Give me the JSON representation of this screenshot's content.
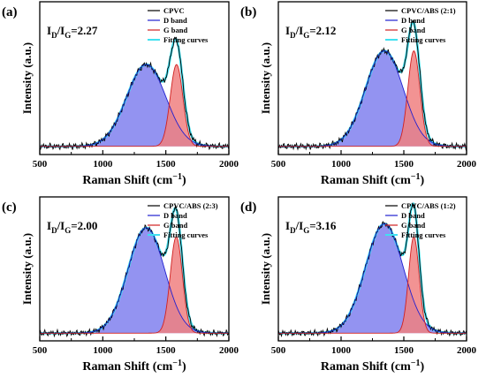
{
  "chart_data": [
    {
      "panel": "(a)",
      "type": "line",
      "annotation": {
        "base": "I",
        "sub1": "D",
        "sep": "/I",
        "sub2": "G",
        "value": "=2.27"
      },
      "xlabel": "Raman Shift (cm⁻¹)",
      "ylabel": "Intensity (a.u.)",
      "xlim": [
        500,
        2000
      ],
      "x_ticks": [
        "500",
        "1000",
        "1500",
        "2000"
      ],
      "legend_position": "top-right",
      "legend": [
        "CPVC",
        "D band",
        "G band",
        "Fitting curves"
      ],
      "baseline": 0.06,
      "d_band": {
        "center": 1345,
        "width": 155,
        "height": 0.6
      },
      "g_band": {
        "center": 1585,
        "width": 50,
        "height": 0.6
      },
      "ylim": [
        0,
        1.12
      ],
      "colors": {
        "measured": "#000000",
        "d_band": "#2020d0",
        "g_band": "#d02020",
        "fit": "#40e0f0",
        "d_fill": "#8080ee",
        "g_fill": "#f08080"
      }
    },
    {
      "panel": "(b)",
      "type": "line",
      "annotation": {
        "base": "I",
        "sub1": "D",
        "sep": "/I",
        "sub2": "G",
        "value": "=2.12"
      },
      "xlabel": "Raman Shift (cm⁻¹)",
      "ylabel": "Intensity (a.u.)",
      "xlim": [
        500,
        2000
      ],
      "x_ticks": [
        "500",
        "1000",
        "1500",
        "2000"
      ],
      "legend_position": "top-right",
      "legend": [
        "CPVC/ABS (2:1)",
        "D band",
        "G band",
        "Fitting curves"
      ],
      "baseline": 0.06,
      "d_band": {
        "center": 1345,
        "width": 150,
        "height": 0.7
      },
      "g_band": {
        "center": 1580,
        "width": 48,
        "height": 0.7
      },
      "ylim": [
        0,
        1.12
      ],
      "colors": {
        "measured": "#000000",
        "d_band": "#2020d0",
        "g_band": "#d02020",
        "fit": "#40e0f0",
        "d_fill": "#8080ee",
        "g_fill": "#f08080"
      }
    },
    {
      "panel": "(c)",
      "type": "line",
      "annotation": {
        "base": "I",
        "sub1": "D",
        "sep": "/I",
        "sub2": "G",
        "value": "=2.00"
      },
      "xlabel": "Raman Shift (cm⁻¹)",
      "ylabel": "Intensity (a.u.)",
      "xlim": [
        500,
        2000
      ],
      "x_ticks": [
        "500",
        "1000",
        "1500",
        "2000"
      ],
      "legend_position": "top-right",
      "legend": [
        "CPVC/ABS (2:3)",
        "D band",
        "G band",
        "Fitting curves"
      ],
      "baseline": 0.06,
      "d_band": {
        "center": 1345,
        "width": 145,
        "height": 0.82
      },
      "g_band": {
        "center": 1583,
        "width": 48,
        "height": 0.75
      },
      "ylim": [
        0,
        1.12
      ],
      "colors": {
        "measured": "#000000",
        "d_band": "#2020d0",
        "g_band": "#d02020",
        "fit": "#40e0f0",
        "d_fill": "#8080ee",
        "g_fill": "#f08080"
      }
    },
    {
      "panel": "(d)",
      "type": "line",
      "annotation": {
        "base": "I",
        "sub1": "D",
        "sep": "/I",
        "sub2": "G",
        "value": "=3.16"
      },
      "xlabel": "Raman Shift (cm⁻¹)",
      "ylabel": "Intensity (a.u.)",
      "xlim": [
        500,
        2000
      ],
      "x_ticks": [
        "500",
        "1000",
        "1500",
        "2000"
      ],
      "legend_position": "top-right",
      "legend": [
        "CPVC/ABS (1:2)",
        "D band",
        "G band",
        "Fitting curves"
      ],
      "baseline": 0.06,
      "d_band": {
        "center": 1345,
        "width": 150,
        "height": 0.85
      },
      "g_band": {
        "center": 1580,
        "width": 42,
        "height": 0.75
      },
      "ylim": [
        0,
        1.12
      ],
      "colors": {
        "measured": "#000000",
        "d_band": "#2020d0",
        "g_band": "#d02020",
        "fit": "#40e0f0",
        "d_fill": "#8080ee",
        "g_fill": "#f08080"
      }
    }
  ]
}
